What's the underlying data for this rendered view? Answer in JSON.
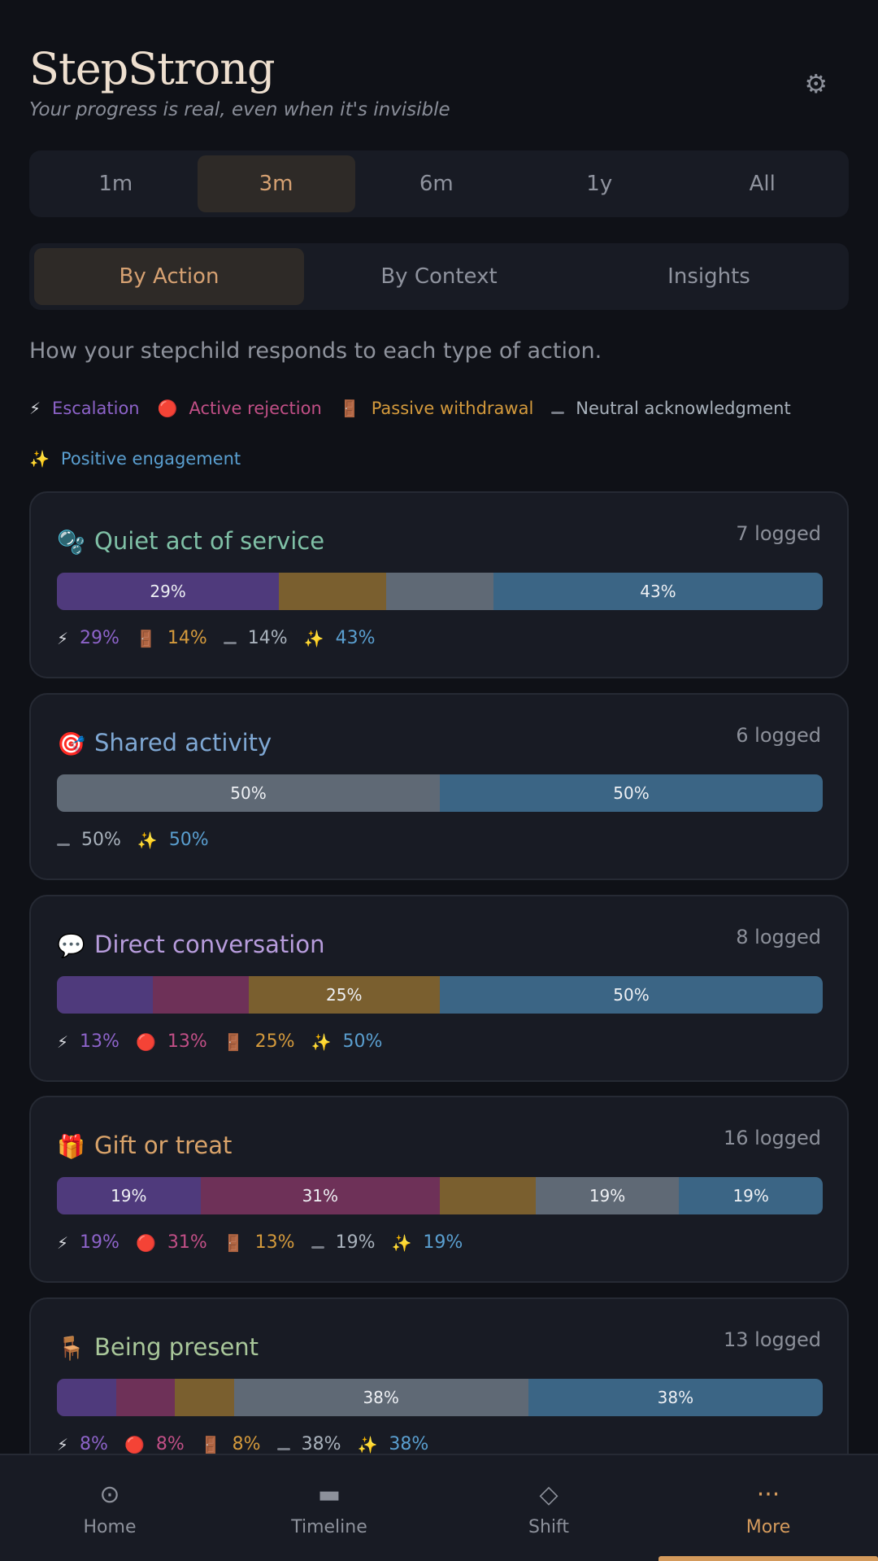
{
  "app": {
    "title": "StepStrong",
    "subtitle": "Your progress is real, even when it's invisible",
    "settings_icon": "gear-icon"
  },
  "range_tabs": [
    {
      "label": "1m",
      "active": false
    },
    {
      "label": "3m",
      "active": true
    },
    {
      "label": "6m",
      "active": false
    },
    {
      "label": "1y",
      "active": false
    },
    {
      "label": "All",
      "active": false
    }
  ],
  "view_tabs": [
    {
      "label": "By Action",
      "active": true
    },
    {
      "label": "By Context",
      "active": false
    },
    {
      "label": "Insights",
      "active": false
    }
  ],
  "intro": "How your stepchild responds to each type of action.",
  "legend": {
    "escalation": {
      "icon": "⚡",
      "label": "Escalation"
    },
    "rejection": {
      "icon": "🔴",
      "label": "Active rejection"
    },
    "withdrawal": {
      "icon": "🚪",
      "label": "Passive withdrawal"
    },
    "neutral": {
      "icon": "dash",
      "label": "Neutral acknowledgment"
    },
    "positive": {
      "icon": "✨",
      "label": "Positive engagement"
    }
  },
  "colors": {
    "escalation": "#4f3a7c",
    "rejection": "#6e3158",
    "withdrawal": "#7a5f2f",
    "neutral": "#5f6975",
    "positive": "#3b6585",
    "accent": "#d49a5c"
  },
  "cards": [
    {
      "icon": "🫧",
      "title": "Quiet act of service",
      "title_color": "#7fc0a6",
      "count": "7 logged",
      "segments": [
        {
          "type": "escalation",
          "value": 29,
          "label": "29%"
        },
        {
          "type": "withdrawal",
          "value": 14,
          "label": ""
        },
        {
          "type": "neutral",
          "value": 14,
          "label": ""
        },
        {
          "type": "positive",
          "value": 43,
          "label": "43%"
        }
      ],
      "stats": [
        {
          "type": "escalation",
          "text": "29%"
        },
        {
          "type": "withdrawal",
          "text": "14%"
        },
        {
          "type": "neutral",
          "text": "14%"
        },
        {
          "type": "positive",
          "text": "43%"
        }
      ]
    },
    {
      "icon": "🎯",
      "title": "Shared activity",
      "title_color": "#7fa8d4",
      "count": "6 logged",
      "segments": [
        {
          "type": "neutral",
          "value": 50,
          "label": "50%"
        },
        {
          "type": "positive",
          "value": 50,
          "label": "50%"
        }
      ],
      "stats": [
        {
          "type": "neutral",
          "text": "50%"
        },
        {
          "type": "positive",
          "text": "50%"
        }
      ]
    },
    {
      "icon": "💬",
      "title": "Direct conversation",
      "title_color": "#b79cdc",
      "count": "8 logged",
      "segments": [
        {
          "type": "escalation",
          "value": 12.5,
          "label": ""
        },
        {
          "type": "rejection",
          "value": 12.5,
          "label": ""
        },
        {
          "type": "withdrawal",
          "value": 25,
          "label": "25%"
        },
        {
          "type": "positive",
          "value": 50,
          "label": "50%"
        }
      ],
      "stats": [
        {
          "type": "escalation",
          "text": "13%"
        },
        {
          "type": "rejection",
          "text": "13%"
        },
        {
          "type": "withdrawal",
          "text": "25%"
        },
        {
          "type": "positive",
          "text": "50%"
        }
      ]
    },
    {
      "icon": "🎁",
      "title": "Gift or treat",
      "title_color": "#d9a36a",
      "count": "16 logged",
      "segments": [
        {
          "type": "escalation",
          "value": 18.75,
          "label": "19%"
        },
        {
          "type": "rejection",
          "value": 31.25,
          "label": "31%"
        },
        {
          "type": "withdrawal",
          "value": 12.5,
          "label": ""
        },
        {
          "type": "neutral",
          "value": 18.75,
          "label": "19%"
        },
        {
          "type": "positive",
          "value": 18.75,
          "label": "19%"
        }
      ],
      "stats": [
        {
          "type": "escalation",
          "text": "19%"
        },
        {
          "type": "rejection",
          "text": "31%"
        },
        {
          "type": "withdrawal",
          "text": "13%"
        },
        {
          "type": "neutral",
          "text": "19%"
        },
        {
          "type": "positive",
          "text": "19%"
        }
      ]
    },
    {
      "icon": "🪑",
      "title": "Being present",
      "title_color": "#a9c79a",
      "count": "13 logged",
      "segments": [
        {
          "type": "escalation",
          "value": 7.7,
          "label": ""
        },
        {
          "type": "rejection",
          "value": 7.7,
          "label": ""
        },
        {
          "type": "withdrawal",
          "value": 7.7,
          "label": ""
        },
        {
          "type": "neutral",
          "value": 38.45,
          "label": "38%"
        },
        {
          "type": "positive",
          "value": 38.45,
          "label": "38%"
        }
      ],
      "stats": [
        {
          "type": "escalation",
          "text": "8%"
        },
        {
          "type": "rejection",
          "text": "8%"
        },
        {
          "type": "withdrawal",
          "text": "8%"
        },
        {
          "type": "neutral",
          "text": "38%"
        },
        {
          "type": "positive",
          "text": "38%"
        }
      ]
    }
  ],
  "nav": [
    {
      "icon": "home-icon",
      "glyph": "⊙",
      "label": "Home",
      "active": false
    },
    {
      "icon": "timeline-icon",
      "glyph": "▬",
      "label": "Timeline",
      "active": false
    },
    {
      "icon": "shift-icon",
      "glyph": "◇",
      "label": "Shift",
      "active": false
    },
    {
      "icon": "more-icon",
      "glyph": "···",
      "label": "More",
      "active": true
    }
  ]
}
